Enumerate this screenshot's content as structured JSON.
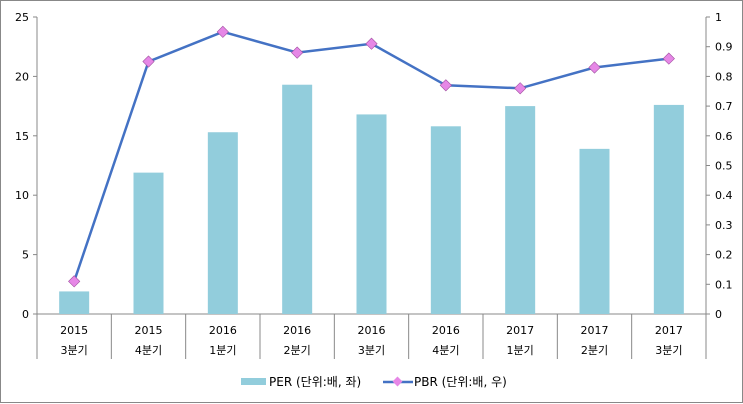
{
  "chart_data": {
    "type": "bar+line",
    "categories": [
      [
        "2015",
        "3분기"
      ],
      [
        "2015",
        "4분기"
      ],
      [
        "2016",
        "1분기"
      ],
      [
        "2016",
        "2분기"
      ],
      [
        "2016",
        "3분기"
      ],
      [
        "2016",
        "4분기"
      ],
      [
        "2017",
        "1분기"
      ],
      [
        "2017",
        "2분기"
      ],
      [
        "2017",
        "3분기"
      ]
    ],
    "series": [
      {
        "name": "PER (단위:배, 좌)",
        "type": "bar",
        "axis": "left",
        "color": "#92CDDC",
        "values": [
          1.9,
          11.9,
          15.3,
          19.3,
          16.8,
          15.8,
          17.5,
          13.9,
          17.6
        ]
      },
      {
        "name": "PBR (단위:배, 우)",
        "type": "line",
        "axis": "right",
        "color": "#4472C4",
        "marker_color": "#E687E6",
        "values": [
          0.11,
          0.85,
          0.95,
          0.88,
          0.91,
          0.77,
          0.76,
          0.83,
          0.86
        ]
      }
    ],
    "y_left": {
      "ylim": [
        0,
        25
      ],
      "ticks": [
        "0",
        "5",
        "10",
        "15",
        "20",
        "25"
      ]
    },
    "y_right": {
      "ylim": [
        0,
        1
      ],
      "ticks": [
        "0",
        "0.1",
        "0.2",
        "0.3",
        "0.4",
        "0.5",
        "0.6",
        "0.7",
        "0.8",
        "0.9",
        "1"
      ]
    },
    "legend": "bottom",
    "grid": false
  }
}
